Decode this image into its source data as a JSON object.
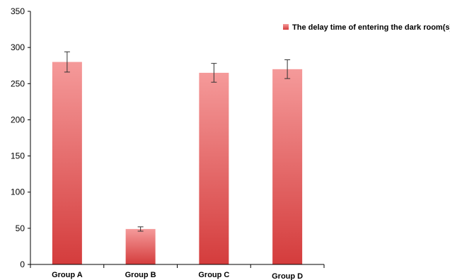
{
  "chart_data": {
    "type": "bar",
    "categories": [
      "Group A",
      "Group B",
      "Group C",
      "Group D"
    ],
    "series": [
      {
        "name": "The delay time of entering the dark room(s)",
        "values": [
          280,
          49,
          265,
          270
        ],
        "error": [
          14,
          3,
          13,
          13
        ]
      }
    ],
    "ylim": [
      0,
      350
    ],
    "yticks": [
      "0",
      "50",
      "100",
      "150",
      "200",
      "250",
      "300",
      "350"
    ],
    "ytick_values": [
      0,
      50,
      100,
      150,
      200,
      250,
      300,
      350
    ],
    "grid": false,
    "legend_position": "top-right",
    "colors": {
      "bar_top": "#f59a9a",
      "bar_bottom": "#d43c3c",
      "axis": "#000000"
    }
  }
}
